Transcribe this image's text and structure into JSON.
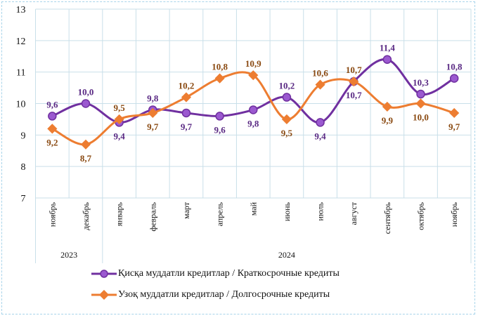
{
  "chart_data": {
    "type": "line",
    "title": "",
    "ylim": [
      7,
      13
    ],
    "yticks": [
      7,
      8,
      9,
      10,
      11,
      12,
      13
    ],
    "grid": true,
    "categories": [
      "ноябрь",
      "декабрь",
      "январь",
      "февраль",
      "март",
      "апрель",
      "май",
      "июнь",
      "июль",
      "август",
      "сентябрь",
      "октябрь",
      "ноябрь"
    ],
    "year_groups": [
      {
        "label": "2023",
        "count": 2
      },
      {
        "label": "2024",
        "count": 11
      }
    ],
    "legend_placement": "bottom",
    "series": [
      {
        "name": "Қисқа муддатли кредитлар  / Краткосрочные кредиты",
        "color": "#7030a0",
        "label_color": "#5a2a84",
        "marker": "circle",
        "values": [
          9.6,
          10.0,
          9.4,
          9.8,
          9.7,
          9.6,
          9.8,
          10.2,
          9.4,
          10.7,
          11.4,
          10.3,
          10.8
        ],
        "labels": [
          "9,6",
          "10,0",
          "9,4",
          "9,8",
          "9,7",
          "9,6",
          "9,8",
          "10,2",
          "9,4",
          "10,7",
          "11,4",
          "10,3",
          "10,8"
        ]
      },
      {
        "name": "Узоқ муддатли  кредитлар  / Долгосрочные кредиты",
        "color": "#ed7d31",
        "label_color": "#8a4a12",
        "marker": "diamond",
        "values": [
          9.2,
          8.7,
          9.5,
          9.7,
          10.2,
          10.8,
          10.9,
          9.5,
          10.6,
          10.7,
          9.9,
          10.0,
          9.7
        ],
        "labels": [
          "9,2",
          "8,7",
          "9,5",
          "9,7",
          "10,2",
          "10,8",
          "10,9",
          "9,5",
          "10,6",
          "10,7",
          "9,9",
          "10,0",
          "9,7"
        ]
      }
    ]
  }
}
